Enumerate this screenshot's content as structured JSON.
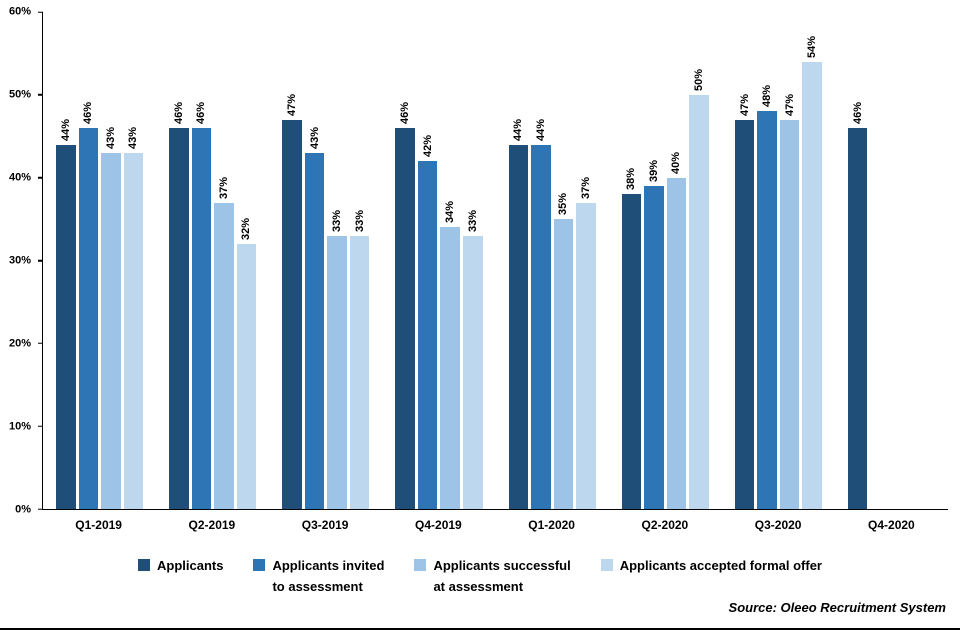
{
  "chart_data": {
    "type": "bar",
    "title": "",
    "xlabel": "",
    "ylabel": "",
    "ylim": [
      0,
      60
    ],
    "yticks": [
      {
        "label": "0%",
        "value": 0
      },
      {
        "label": "10%",
        "value": 10
      },
      {
        "label": "20%",
        "value": 20
      },
      {
        "label": "30%",
        "value": 30
      },
      {
        "label": "40%",
        "value": 40
      },
      {
        "label": "50%",
        "value": 50
      },
      {
        "label": "60%",
        "value": 60
      }
    ],
    "grid": false,
    "legend_position": "bottom",
    "value_suffix": "%",
    "categories": [
      "Q1-2019",
      "Q2-2019",
      "Q3-2019",
      "Q4-2019",
      "Q1-2020",
      "Q2-2020",
      "Q3-2020",
      "Q4-2020"
    ],
    "series": [
      {
        "name": "Applicants",
        "legend_lines": "Applicants",
        "color": "#1f4e79",
        "values": [
          44,
          46,
          47,
          46,
          44,
          38,
          47,
          46
        ]
      },
      {
        "name": "Applicants invited to assessment",
        "legend_lines": "Applicants invited\nto assessment",
        "color": "#2e75b6",
        "values": [
          46,
          46,
          43,
          42,
          44,
          39,
          48,
          null
        ]
      },
      {
        "name": "Applicants successful at assessment",
        "legend_lines": "Applicants successful\nat assessment",
        "color": "#9dc3e6",
        "values": [
          43,
          37,
          33,
          34,
          35,
          40,
          47,
          null
        ]
      },
      {
        "name": "Applicants accepted formal offer",
        "legend_lines": "Applicants accepted formal offer",
        "color": "#bdd7ee",
        "values": [
          43,
          32,
          33,
          33,
          37,
          50,
          54,
          null
        ]
      }
    ],
    "source": "Source: Oleeo Recruitment System"
  }
}
